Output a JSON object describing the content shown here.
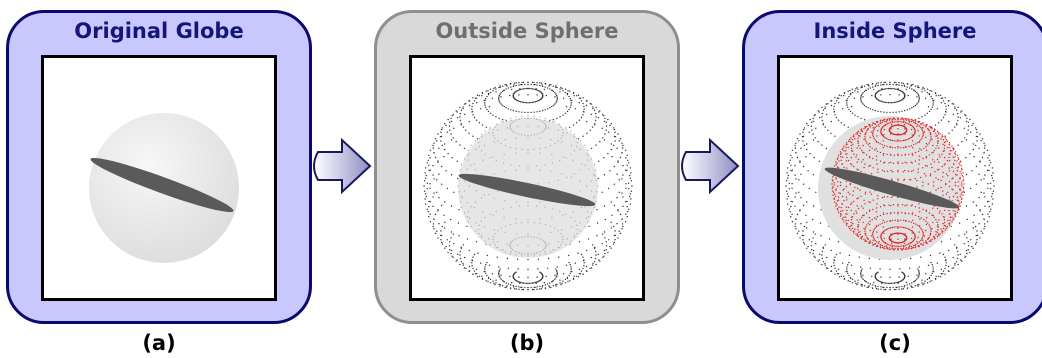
{
  "panels": [
    {
      "id": "a",
      "title": "Original Globe",
      "caption": "(a)"
    },
    {
      "id": "b",
      "title": "Outside Sphere",
      "caption": "(b)"
    },
    {
      "id": "c",
      "title": "Inside Sphere",
      "caption": "(c)"
    }
  ],
  "colors": {
    "panel_blue": "#c8c8ff",
    "panel_gray": "#d9d9d9",
    "outside_points": "#333333",
    "inside_points": "#e02020",
    "disk": "#5a5a5a"
  }
}
